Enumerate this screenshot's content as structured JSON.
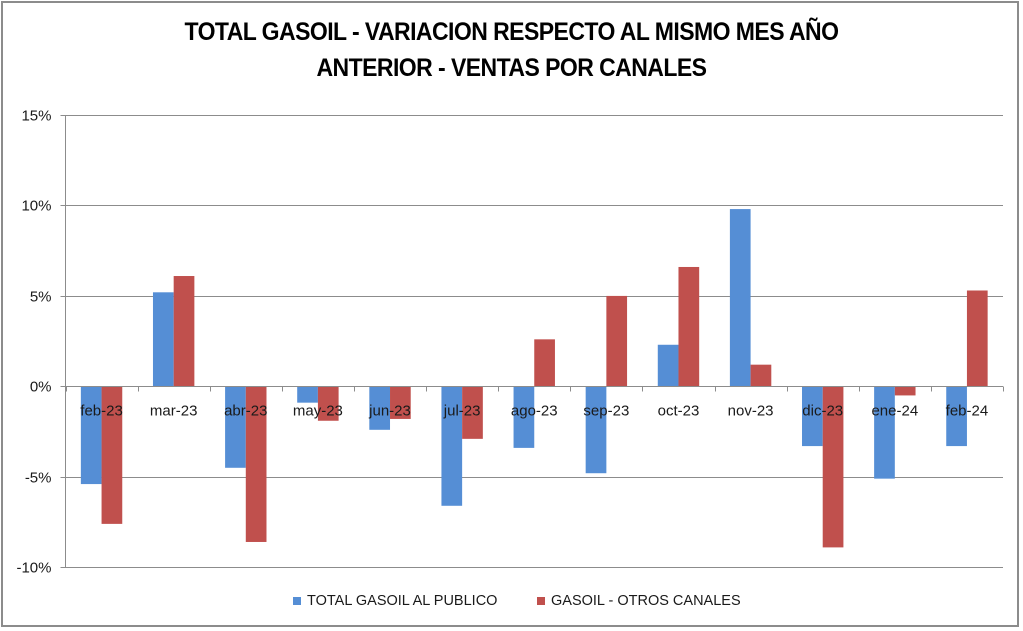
{
  "chart_data": {
    "type": "bar",
    "title": [
      "TOTAL GASOIL - VARIACION RESPECTO AL MISMO MES AÑO",
      "ANTERIOR - VENTAS POR CANALES"
    ],
    "xlabel": "",
    "ylabel": "",
    "categories": [
      "feb-23",
      "mar-23",
      "abr-23",
      "may-23",
      "jun-23",
      "jul-23",
      "ago-23",
      "sep-23",
      "oct-23",
      "nov-23",
      "dic-23",
      "ene-24",
      "feb-24"
    ],
    "series": [
      {
        "name": "TOTAL GASOIL AL PUBLICO",
        "color": "#558ED5",
        "values": [
          -5.4,
          5.2,
          -4.5,
          -0.9,
          -2.4,
          -6.6,
          -3.4,
          -4.8,
          2.3,
          9.8,
          -3.3,
          -5.1,
          -3.3
        ]
      },
      {
        "name": "GASOIL - OTROS CANALES",
        "color": "#C0504D",
        "values": [
          -7.6,
          6.1,
          -8.6,
          -1.9,
          -1.8,
          -2.9,
          2.6,
          5.0,
          6.6,
          1.2,
          -8.9,
          -0.5,
          5.3
        ]
      }
    ],
    "ylim": [
      -10,
      15
    ],
    "yticks": [
      -10,
      -5,
      0,
      5,
      10,
      15
    ],
    "ytick_labels": [
      "-10%",
      "-5%",
      "0%",
      "5%",
      "10%",
      "15%"
    ],
    "value_unit": "%",
    "grid": "horizontal",
    "legend": "bottom"
  }
}
